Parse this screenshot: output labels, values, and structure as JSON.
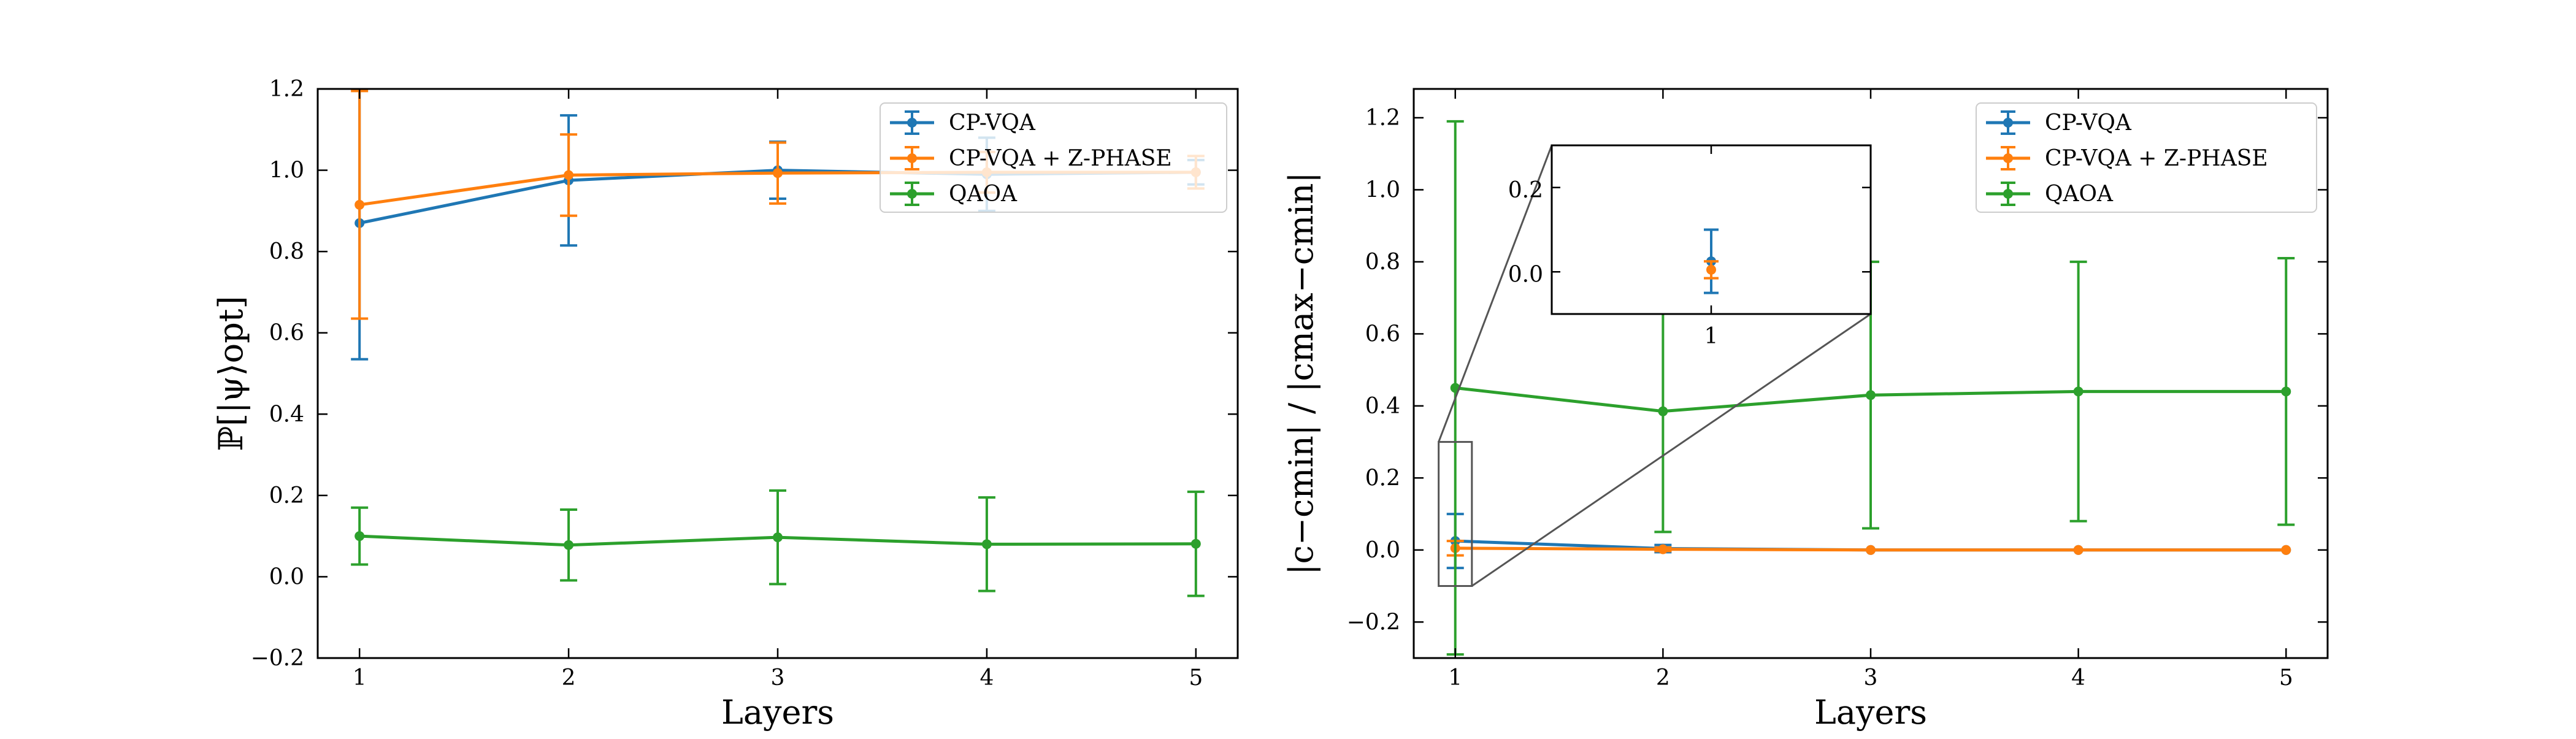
{
  "chart_data": [
    {
      "type": "line",
      "panel": "left",
      "xlabel": "Layers",
      "ylabel": "ℙ[|ψ⟩opt]",
      "x": [
        1,
        2,
        3,
        4,
        5
      ],
      "xlim": [
        0.8,
        5.2
      ],
      "ylim": [
        -0.2,
        1.2
      ],
      "xticks": [
        "1",
        "2",
        "3",
        "4",
        "5"
      ],
      "yticks": [
        "−0.2",
        "0.0",
        "0.2",
        "0.4",
        "0.6",
        "0.8",
        "1.0",
        "1.2"
      ],
      "grid": false,
      "legend": "top-right",
      "series": [
        {
          "name": "CP-VQA",
          "color": "#1f77b4",
          "values": [
            0.87,
            0.975,
            1.0,
            0.99,
            0.995
          ],
          "err": [
            0.335,
            0.16,
            0.07,
            0.09,
            0.03
          ]
        },
        {
          "name": "CP-VQA + Z-PHASE",
          "color": "#ff7f0e",
          "values": [
            0.915,
            0.988,
            0.993,
            0.995,
            0.995
          ],
          "err": [
            0.28,
            0.1,
            0.075,
            0.05,
            0.04
          ]
        },
        {
          "name": "QAOA",
          "color": "#2ca02c",
          "values": [
            0.1,
            0.078,
            0.097,
            0.08,
            0.081
          ],
          "err": [
            0.07,
            0.087,
            0.115,
            0.115,
            0.128
          ]
        }
      ]
    },
    {
      "type": "line",
      "panel": "right",
      "xlabel": "Layers",
      "ylabel": "|c−cmin| / |cmax−cmin|",
      "x": [
        1,
        2,
        3,
        4,
        5
      ],
      "xlim": [
        0.8,
        5.2
      ],
      "ylim": [
        -0.3,
        1.28
      ],
      "xticks": [
        "1",
        "2",
        "3",
        "4",
        "5"
      ],
      "yticks": [
        "−0.2",
        "0.0",
        "0.2",
        "0.4",
        "0.6",
        "0.8",
        "1.0",
        "1.2"
      ],
      "grid": false,
      "legend": "top-right",
      "series": [
        {
          "name": "CP-VQA",
          "color": "#1f77b4",
          "values": [
            0.025,
            0.004,
            0.0,
            0.0,
            0.0
          ],
          "err": [
            0.075,
            0.01,
            0.0,
            0.0,
            0.0
          ]
        },
        {
          "name": "CP-VQA + Z-PHASE",
          "color": "#ff7f0e",
          "values": [
            0.005,
            0.002,
            0.0,
            0.0,
            0.0
          ],
          "err": [
            0.02,
            0.005,
            0.0,
            0.0,
            0.0
          ]
        },
        {
          "name": "QAOA",
          "color": "#2ca02c",
          "values": [
            0.45,
            0.385,
            0.43,
            0.44,
            0.44
          ],
          "err": [
            0.74,
            0.335,
            0.37,
            0.36,
            0.37
          ]
        }
      ],
      "inset": {
        "xlim": [
          0.92,
          1.08
        ],
        "ylim": [
          -0.1,
          0.3
        ],
        "xticks": [
          "1"
        ],
        "yticks": [
          "0.0",
          "0.2"
        ]
      }
    }
  ]
}
